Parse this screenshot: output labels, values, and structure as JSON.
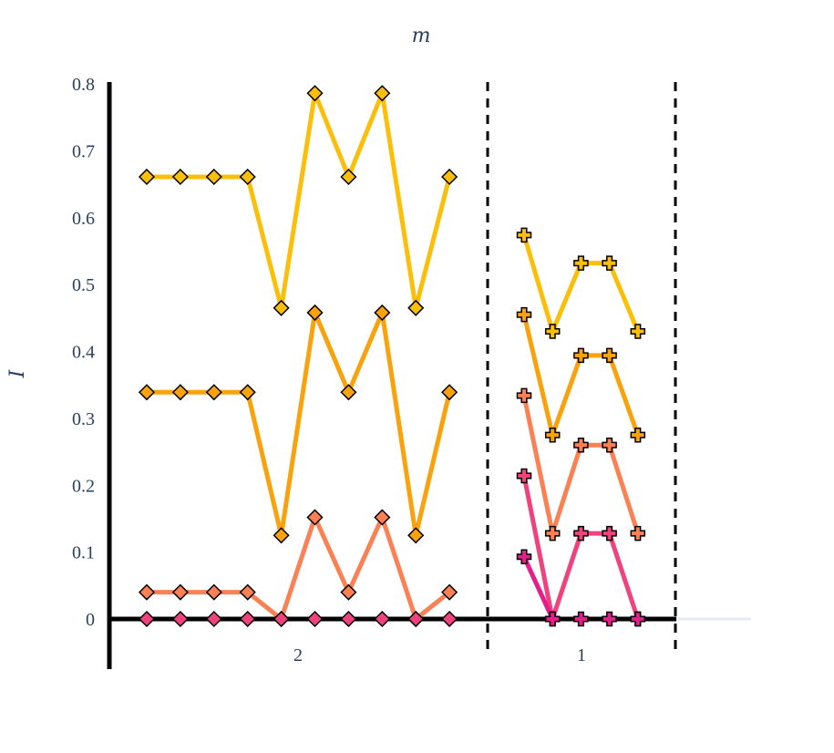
{
  "chart_data": {
    "type": "line",
    "title": "m",
    "ylabel": "I",
    "xlabel": "",
    "ylim": [
      0,
      0.8
    ],
    "y_ticks": [
      "0",
      "0.1",
      "0.2",
      "0.3",
      "0.4",
      "0.5",
      "0.6",
      "0.7",
      "0.8"
    ],
    "groups": [
      {
        "label": "2",
        "marker": "diamond",
        "series": [
          {
            "color": "#fbbf0a",
            "values": [
              0.661,
              0.661,
              0.661,
              0.661,
              0.465,
              0.786,
              0.661,
              0.786,
              0.465,
              0.661
            ]
          },
          {
            "color": "#f9a20c",
            "values": [
              0.339,
              0.339,
              0.339,
              0.339,
              0.125,
              0.458,
              0.339,
              0.458,
              0.125,
              0.339
            ]
          },
          {
            "color": "#fb8154",
            "values": [
              0.04,
              0.04,
              0.04,
              0.04,
              0.0,
              0.152,
              0.04,
              0.152,
              0.0,
              0.04
            ]
          },
          {
            "color": "#f0437e",
            "values": [
              0.0,
              0.0,
              0.0,
              0.0,
              0.0,
              0.0,
              0.0,
              0.0,
              0.0,
              0.0
            ]
          }
        ]
      },
      {
        "label": "1",
        "marker": "cross",
        "series": [
          {
            "color": "#fbbf0a",
            "values": [
              0.574,
              0.43,
              0.532,
              0.532,
              0.43
            ]
          },
          {
            "color": "#f9a20c",
            "values": [
              0.455,
              0.275,
              0.394,
              0.394,
              0.275
            ]
          },
          {
            "color": "#fb8154",
            "values": [
              0.334,
              0.128,
              0.26,
              0.26,
              0.128
            ]
          },
          {
            "color": "#f0437e",
            "values": [
              0.214,
              0.0,
              0.128,
              0.128,
              0.0
            ]
          },
          {
            "color": "#e41e8c",
            "values": [
              0.093,
              0.0,
              0.0,
              0.0,
              0.0
            ]
          }
        ]
      }
    ],
    "grid": false,
    "legend": "none"
  }
}
